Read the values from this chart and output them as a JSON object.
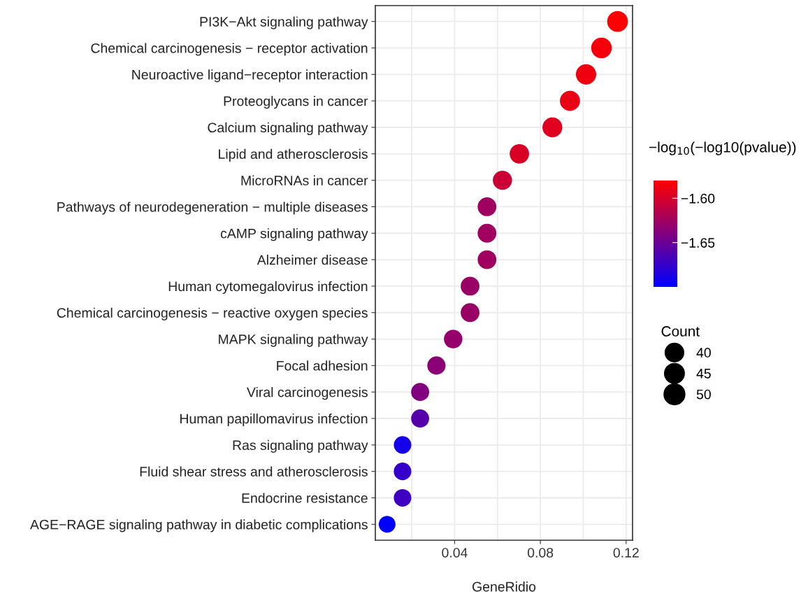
{
  "chart_data": {
    "type": "bubble",
    "xlabel": "GeneRidio",
    "clabel": "−log$_{10}$(−log10(pvalue))",
    "legend_title": "Count",
    "categories": [
      "PI3K−Akt signaling pathway",
      "Chemical carcinogenesis − receptor activation",
      "Neuroactive ligand−receptor interaction",
      "Proteoglycans in cancer",
      "Calcium signaling pathway",
      "Lipid and atherosclerosis",
      "MicroRNAs in cancer",
      "Pathways of neurodegeneration − multiple diseases",
      "cAMP signaling pathway",
      "Alzheimer disease",
      "Human cytomegalovirus infection",
      "Chemical carcinogenesis − reactive oxygen species",
      "MAPK signaling pathway",
      "Focal adhesion",
      "Viral carcinogenesis",
      "Human papillomavirus infection",
      "Ras signaling pathway",
      "Fluid shear stress and atherosclerosis",
      "Endocrine resistance",
      "AGE−RAGE signaling pathway in diabetic complications"
    ],
    "values": [
      0.116,
      0.1085,
      0.1013,
      0.0938,
      0.0856,
      0.0702,
      0.0623,
      0.0551,
      0.0551,
      0.0551,
      0.0472,
      0.0472,
      0.0393,
      0.0315,
      0.0239,
      0.0239,
      0.0157,
      0.0157,
      0.0157,
      0.0085
    ],
    "sizes": [
      49,
      48,
      47,
      46,
      45,
      43,
      42,
      40,
      40,
      40,
      40,
      40,
      39,
      38,
      37,
      37,
      35,
      35,
      35,
      32
    ],
    "size_legend": [
      40,
      45,
      50
    ],
    "cvalues": [
      -1.581,
      -1.585,
      -1.588,
      -1.59,
      -1.595,
      -1.598,
      -1.605,
      -1.625,
      -1.625,
      -1.625,
      -1.628,
      -1.628,
      -1.63,
      -1.635,
      -1.64,
      -1.66,
      -1.69,
      -1.675,
      -1.67,
      -1.699
    ],
    "orientation": "horizontal",
    "clim": [
      -1.7,
      -1.58
    ],
    "cticks": [
      {
        "value": -1.6,
        "label": "−1.60"
      },
      {
        "value": -1.65,
        "label": "−1.65"
      }
    ],
    "xlim": [
      0.003,
      0.123
    ],
    "xticks": [
      0.04,
      0.08,
      0.12
    ],
    "grid": true
  }
}
